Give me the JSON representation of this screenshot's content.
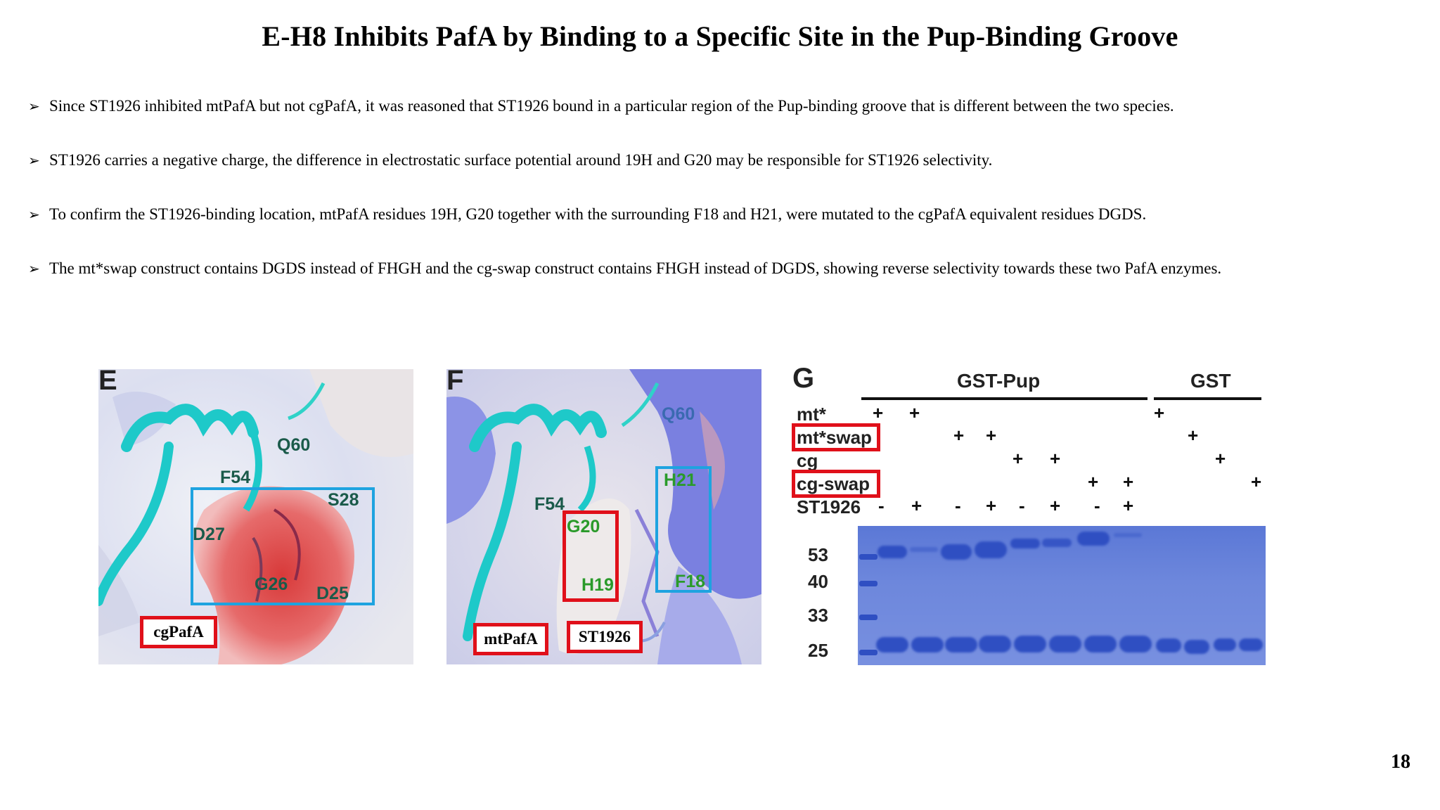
{
  "title": "E-H8 Inhibits PafA by Binding to a Specific Site in the Pup-Binding Groove",
  "bullets": [
    "Since ST1926 inhibited mtPafA but not cgPafA, it was reasoned that ST1926 bound in a particular region of the  Pup-binding groove that is different between the two species.",
    "ST1926 carries a negative charge, the difference in electrostatic surface potential around 19H and G20 may be responsible for ST1926 selectivity.",
    "To confirm the ST1926-binding location, mtPafA residues 19H, G20 together with the surrounding F18 and H21, were mutated to the cgPafA equivalent residues DGDS.",
    "The mt*swap construct contains DGDS instead of FHGH and the cg-swap construct contains FHGH instead of DGDS, showing reverse selectivity towards these two PafA enzymes."
  ],
  "page_number": "18",
  "panel_e": {
    "letter": "E",
    "residues": {
      "q60": "Q60",
      "f54": "F54",
      "s28": "S28",
      "d27": "D27",
      "g26": "G26",
      "d25": "D25"
    },
    "tag": "cgPafA"
  },
  "panel_f": {
    "letter": "F",
    "residues": {
      "q60": "Q60",
      "h21": "H21",
      "f54": "F54",
      "g20": "G20",
      "h19": "H19",
      "f18": "F18"
    },
    "tags": {
      "mtpafa": "mtPafA",
      "st1926": "ST1926"
    }
  },
  "panel_g": {
    "letter": "G",
    "group_headers": {
      "gst_pup": "GST-Pup",
      "gst": "GST"
    },
    "row_labels": {
      "mt": "mt*",
      "mtswap": "mt*swap",
      "cg": "cg",
      "cgswap": "cg-swap",
      "st1926": "ST1926"
    },
    "plus": "+",
    "minus": "-",
    "mw_markers": [
      "53",
      "40",
      "33",
      "25"
    ]
  }
}
